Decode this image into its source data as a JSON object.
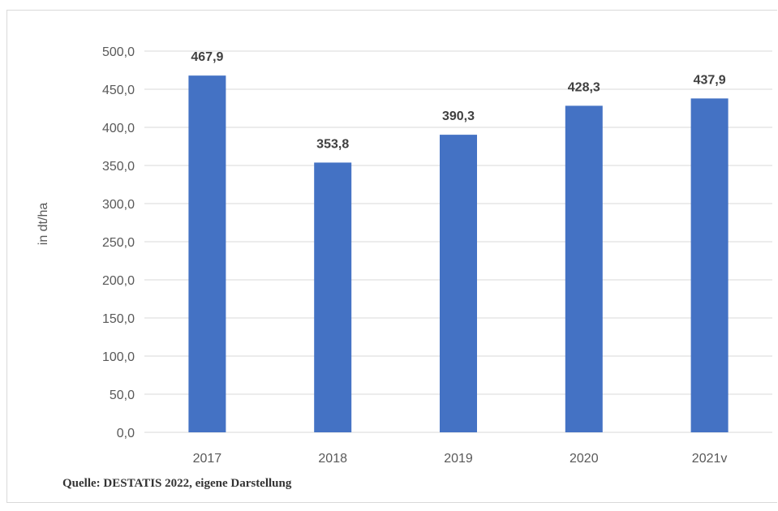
{
  "chart_data": {
    "type": "bar",
    "categories": [
      "2017",
      "2018",
      "2019",
      "2020",
      "2021v"
    ],
    "values": [
      467.9,
      353.8,
      390.3,
      428.3,
      437.9
    ],
    "value_labels": [
      "467,9",
      "353,8",
      "390,3",
      "428,3",
      "437,9"
    ],
    "ylabel": "in dt/ha",
    "xlabel": "",
    "ylim": [
      0,
      500
    ],
    "yticks": [
      0,
      50,
      100,
      150,
      200,
      250,
      300,
      350,
      400,
      450,
      500
    ],
    "ytick_labels": [
      "0,0",
      "50,0",
      "100,0",
      "150,0",
      "200,0",
      "250,0",
      "300,0",
      "350,0",
      "400,0",
      "450,0",
      "500,0"
    ],
    "grid": true,
    "bar_color": "#4472C4",
    "grid_color": "#d9d9d9"
  },
  "source_note": "Quelle: DESTATIS 2022, eigene Darstellung"
}
